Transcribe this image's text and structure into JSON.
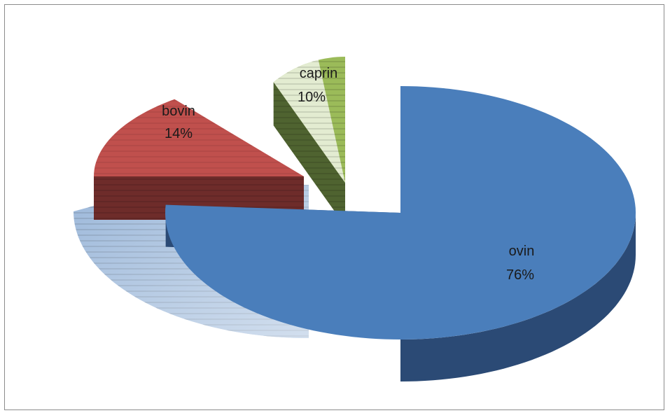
{
  "chart_data": {
    "type": "pie",
    "style": "3d-exploded",
    "title": "",
    "slices": [
      {
        "name": "ovin",
        "value": 76,
        "label_pct": "76%",
        "color": "#4a7ebb",
        "side_color": "#2b4a75"
      },
      {
        "name": "bovin",
        "value": 14,
        "label_pct": "14%",
        "color": "#c0504d",
        "side_color": "#6e2c2a"
      },
      {
        "name": "caprin",
        "value": 10,
        "label_pct": "10%",
        "color": "#9bbb59",
        "side_color": "#4f6330"
      }
    ],
    "legend": "none",
    "data_labels": "category-and-percent"
  }
}
